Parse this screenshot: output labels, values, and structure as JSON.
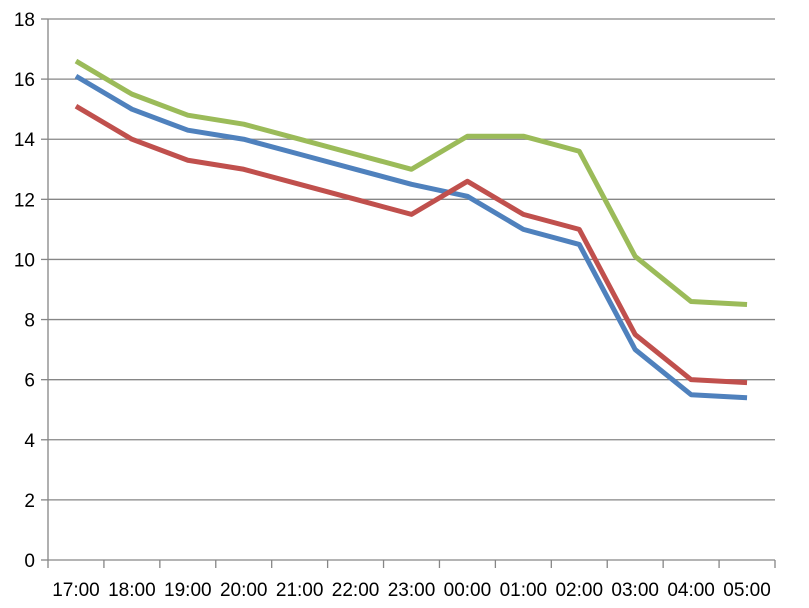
{
  "chart_data": {
    "type": "line",
    "title": "",
    "xlabel": "",
    "ylabel": "",
    "x": [
      "17:00",
      "18:00",
      "19:00",
      "20:00",
      "21:00",
      "22:00",
      "23:00",
      "00:00",
      "01:00",
      "02:00",
      "03:00",
      "04:00",
      "05:00"
    ],
    "ylim": [
      0,
      18
    ],
    "yticks": [
      0,
      2,
      4,
      6,
      8,
      10,
      12,
      14,
      16,
      18
    ],
    "grid": true,
    "series": [
      {
        "color": "#4f81bd",
        "values": [
          16.1,
          15.0,
          14.3,
          14.0,
          13.5,
          13.0,
          12.5,
          12.1,
          11.0,
          10.5,
          7.0,
          5.5,
          5.4
        ]
      },
      {
        "color": "#c0504d",
        "values": [
          15.1,
          14.0,
          13.3,
          13.0,
          12.5,
          12.0,
          11.5,
          12.6,
          11.5,
          11.0,
          7.5,
          6.0,
          5.9
        ]
      },
      {
        "color": "#9bbb59",
        "values": [
          16.6,
          15.5,
          14.8,
          14.5,
          14.0,
          13.5,
          13.0,
          14.1,
          14.1,
          13.6,
          10.1,
          8.6,
          8.5
        ]
      }
    ]
  }
}
